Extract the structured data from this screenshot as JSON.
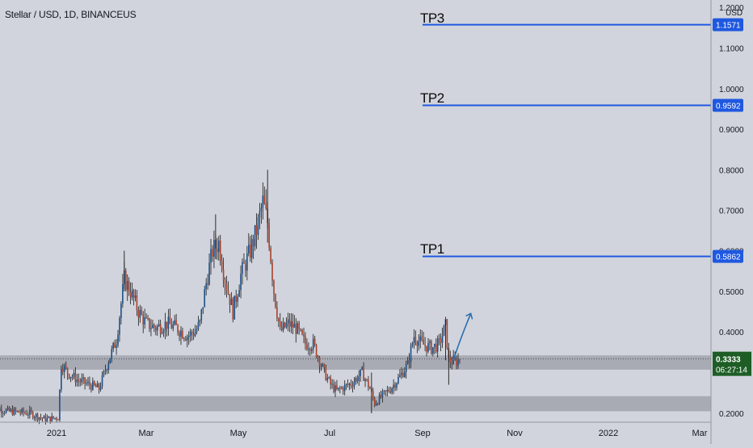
{
  "header": {
    "symbol_title": "Stellar / USD, 1D, BINANCEUS",
    "currency": "USD"
  },
  "price_badge": {
    "price": "0.3333",
    "countdown": "06:27:14",
    "color": "#1e5e26"
  },
  "colors": {
    "background": "#d1d4dc",
    "up_candle": "#1e4f86",
    "down_candle": "#a8412d",
    "wick": "#1a1a1a",
    "target_line": "#1f58e0",
    "zone": "#9a9da5",
    "arrow": "#2c6fb3"
  },
  "targets": [
    {
      "label": "TP3",
      "price": 1.1571,
      "badge": "1.1571"
    },
    {
      "label": "TP2",
      "price": 0.9592,
      "badge": "0.9592"
    },
    {
      "label": "TP1",
      "price": 0.5862,
      "badge": "0.5862"
    }
  ],
  "chart_data": {
    "type": "candlestick",
    "title": "Stellar / USD, 1D, BINANCEUS",
    "y_axis_ticks": [
      "0.2000",
      "0.4000",
      "0.5000",
      "0.6000",
      "0.7000",
      "0.8000",
      "0.9000",
      "1.0000",
      "1.1000",
      "1.2000"
    ],
    "x_axis_ticks": [
      "2021",
      "Mar",
      "May",
      "Jul",
      "Sep",
      "Nov",
      "2022",
      "Mar"
    ],
    "ylim": [
      0.195,
      1.2
    ],
    "grid": false,
    "support_zones": [
      {
        "low": 0.307,
        "high": 0.342
      },
      {
        "low": 0.205,
        "high": 0.242
      }
    ],
    "projection_arrow": {
      "from_date": "2021-09-10",
      "from_price": 0.33,
      "to_date": "2021-09-21",
      "to_price": 0.445
    },
    "price_path": [
      [
        "2020-11-20",
        0.215
      ],
      [
        "2020-12-01",
        0.205
      ],
      [
        "2020-12-15",
        0.2
      ],
      [
        "2020-12-25",
        0.185
      ],
      [
        "2021-01-02",
        0.19
      ],
      [
        "2021-01-04",
        0.32
      ],
      [
        "2021-01-08",
        0.3
      ],
      [
        "2021-01-15",
        0.28
      ],
      [
        "2021-01-22",
        0.27
      ],
      [
        "2021-01-28",
        0.26
      ],
      [
        "2021-02-03",
        0.33
      ],
      [
        "2021-02-08",
        0.38
      ],
      [
        "2021-02-13",
        0.53
      ],
      [
        "2021-02-17",
        0.5
      ],
      [
        "2021-02-22",
        0.45
      ],
      [
        "2021-02-27",
        0.42
      ],
      [
        "2021-03-05",
        0.41
      ],
      [
        "2021-03-12",
        0.42
      ],
      [
        "2021-03-18",
        0.41
      ],
      [
        "2021-03-25",
        0.39
      ],
      [
        "2021-03-30",
        0.4
      ],
      [
        "2021-04-02",
        0.42
      ],
      [
        "2021-04-06",
        0.52
      ],
      [
        "2021-04-10",
        0.6
      ],
      [
        "2021-04-14",
        0.62
      ],
      [
        "2021-04-18",
        0.53
      ],
      [
        "2021-04-23",
        0.45
      ],
      [
        "2021-04-28",
        0.54
      ],
      [
        "2021-05-04",
        0.6
      ],
      [
        "2021-05-08",
        0.65
      ],
      [
        "2021-05-12",
        0.72
      ],
      [
        "2021-05-15",
        0.67
      ],
      [
        "2021-05-19",
        0.5
      ],
      [
        "2021-05-23",
        0.4
      ],
      [
        "2021-05-28",
        0.42
      ],
      [
        "2021-06-02",
        0.41
      ],
      [
        "2021-06-08",
        0.37
      ],
      [
        "2021-06-13",
        0.37
      ],
      [
        "2021-06-20",
        0.3
      ],
      [
        "2021-06-24",
        0.27
      ],
      [
        "2021-06-28",
        0.255
      ],
      [
        "2021-07-03",
        0.265
      ],
      [
        "2021-07-08",
        0.275
      ],
      [
        "2021-07-14",
        0.3
      ],
      [
        "2021-07-19",
        0.26
      ],
      [
        "2021-07-22",
        0.225
      ],
      [
        "2021-07-26",
        0.24
      ],
      [
        "2021-08-01",
        0.26
      ],
      [
        "2021-08-07",
        0.29
      ],
      [
        "2021-08-12",
        0.32
      ],
      [
        "2021-08-16",
        0.39
      ],
      [
        "2021-08-21",
        0.37
      ],
      [
        "2021-08-27",
        0.36
      ],
      [
        "2021-09-01",
        0.37
      ],
      [
        "2021-09-05",
        0.415
      ],
      [
        "2021-09-07",
        0.33
      ],
      [
        "2021-09-11",
        0.325
      ],
      [
        "2021-09-14",
        0.333
      ]
    ]
  }
}
